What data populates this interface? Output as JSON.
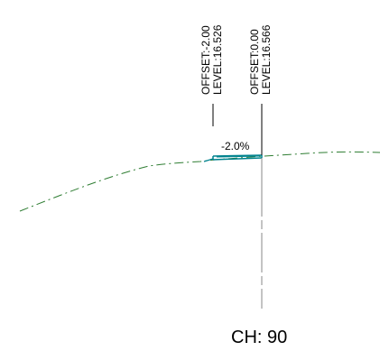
{
  "labels": {
    "left_offset": "OFFSET:-2.00",
    "left_level": "LEVEL:16.526",
    "right_offset": "OFFSET:0.00",
    "right_level": "LEVEL:16.566",
    "slope": "-2.0%",
    "chainage": "CH: 90"
  },
  "colors": {
    "ground_line": "#2e7d32",
    "pavement": "#00838f",
    "centerline": "#8a8a8a",
    "leader": "#000000",
    "text": "#000000"
  }
}
